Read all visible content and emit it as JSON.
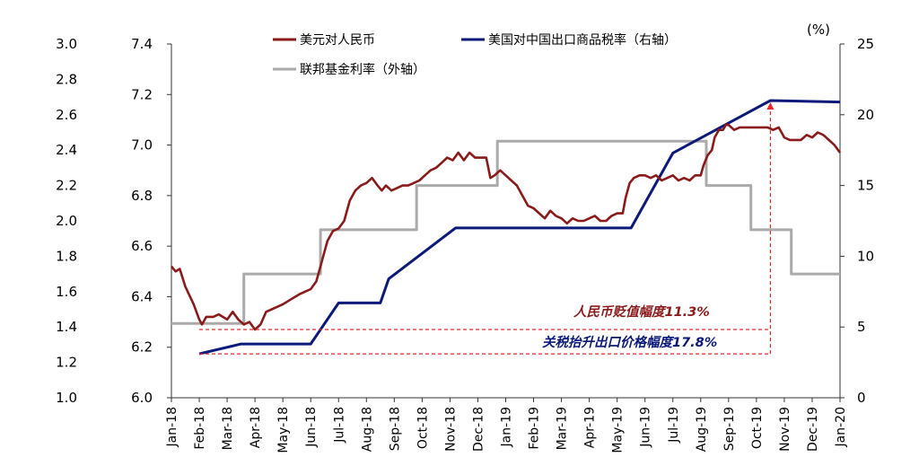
{
  "chart_data": {
    "type": "line",
    "unit_label": "(%)",
    "x_labels": [
      "Jan-18",
      "Feb-18",
      "Mar-18",
      "Apr-18",
      "May-18",
      "Jun-18",
      "Jul-18",
      "Aug-18",
      "Sep-18",
      "Oct-18",
      "Nov-18",
      "Dec-18",
      "Jan-19",
      "Feb-19",
      "Mar-19",
      "Apr-19",
      "May-19",
      "Jun-19",
      "Jul-19",
      "Aug-19",
      "Sep-19",
      "Oct-19",
      "Nov-19",
      "Dec-19",
      "Jan-20"
    ],
    "axes": {
      "outer_left": {
        "min": 1.0,
        "max": 3.0,
        "ticks": [
          "1.0",
          "1.2",
          "1.4",
          "1.6",
          "1.8",
          "2.0",
          "2.2",
          "2.4",
          "2.6",
          "2.8",
          "3.0"
        ]
      },
      "inner_left": {
        "min": 6.0,
        "max": 7.4,
        "ticks": [
          "6.0",
          "6.2",
          "6.4",
          "6.6",
          "6.8",
          "7.0",
          "7.2",
          "7.4"
        ]
      },
      "right": {
        "min": 0,
        "max": 25,
        "ticks": [
          "0",
          "5",
          "10",
          "15",
          "20",
          "25"
        ]
      }
    },
    "series": [
      {
        "name": "美元对人民币",
        "axis": "inner_left",
        "color": "#8b1a1a",
        "points": [
          [
            0,
            6.52
          ],
          [
            0.15,
            6.5
          ],
          [
            0.3,
            6.51
          ],
          [
            0.5,
            6.44
          ],
          [
            0.8,
            6.37
          ],
          [
            1.0,
            6.31
          ],
          [
            1.1,
            6.29
          ],
          [
            1.25,
            6.32
          ],
          [
            1.5,
            6.32
          ],
          [
            1.7,
            6.33
          ],
          [
            2.0,
            6.31
          ],
          [
            2.2,
            6.34
          ],
          [
            2.4,
            6.31
          ],
          [
            2.6,
            6.29
          ],
          [
            2.8,
            6.3
          ],
          [
            3.0,
            6.27
          ],
          [
            3.2,
            6.29
          ],
          [
            3.4,
            6.34
          ],
          [
            3.6,
            6.35
          ],
          [
            3.8,
            6.36
          ],
          [
            4.0,
            6.37
          ],
          [
            4.3,
            6.39
          ],
          [
            4.6,
            6.41
          ],
          [
            4.8,
            6.42
          ],
          [
            5.0,
            6.43
          ],
          [
            5.2,
            6.46
          ],
          [
            5.35,
            6.52
          ],
          [
            5.5,
            6.58
          ],
          [
            5.6,
            6.62
          ],
          [
            5.8,
            6.66
          ],
          [
            6.0,
            6.67
          ],
          [
            6.2,
            6.7
          ],
          [
            6.4,
            6.78
          ],
          [
            6.6,
            6.82
          ],
          [
            6.8,
            6.84
          ],
          [
            7.0,
            6.85
          ],
          [
            7.2,
            6.87
          ],
          [
            7.4,
            6.84
          ],
          [
            7.55,
            6.82
          ],
          [
            7.7,
            6.84
          ],
          [
            7.9,
            6.82
          ],
          [
            8.1,
            6.83
          ],
          [
            8.3,
            6.84
          ],
          [
            8.5,
            6.84
          ],
          [
            8.7,
            6.85
          ],
          [
            8.9,
            6.86
          ],
          [
            9.1,
            6.88
          ],
          [
            9.3,
            6.9
          ],
          [
            9.5,
            6.91
          ],
          [
            9.7,
            6.93
          ],
          [
            9.9,
            6.95
          ],
          [
            10.1,
            6.94
          ],
          [
            10.3,
            6.97
          ],
          [
            10.5,
            6.94
          ],
          [
            10.7,
            6.97
          ],
          [
            10.9,
            6.95
          ],
          [
            11.1,
            6.95
          ],
          [
            11.3,
            6.95
          ],
          [
            11.45,
            6.87
          ],
          [
            11.6,
            6.88
          ],
          [
            11.8,
            6.9
          ],
          [
            12.0,
            6.88
          ],
          [
            12.2,
            6.86
          ],
          [
            12.4,
            6.84
          ],
          [
            12.6,
            6.8
          ],
          [
            12.8,
            6.76
          ],
          [
            13.0,
            6.75
          ],
          [
            13.2,
            6.73
          ],
          [
            13.4,
            6.71
          ],
          [
            13.6,
            6.74
          ],
          [
            13.8,
            6.72
          ],
          [
            14.0,
            6.71
          ],
          [
            14.2,
            6.69
          ],
          [
            14.4,
            6.71
          ],
          [
            14.6,
            6.7
          ],
          [
            14.8,
            6.7
          ],
          [
            15.0,
            6.71
          ],
          [
            15.2,
            6.72
          ],
          [
            15.4,
            6.7
          ],
          [
            15.6,
            6.7
          ],
          [
            15.8,
            6.72
          ],
          [
            16.0,
            6.73
          ],
          [
            16.2,
            6.73
          ],
          [
            16.3,
            6.79
          ],
          [
            16.45,
            6.85
          ],
          [
            16.6,
            6.87
          ],
          [
            16.8,
            6.88
          ],
          [
            17.0,
            6.88
          ],
          [
            17.2,
            6.87
          ],
          [
            17.4,
            6.88
          ],
          [
            17.6,
            6.86
          ],
          [
            17.8,
            6.87
          ],
          [
            18.0,
            6.88
          ],
          [
            18.2,
            6.86
          ],
          [
            18.4,
            6.87
          ],
          [
            18.6,
            6.86
          ],
          [
            18.8,
            6.88
          ],
          [
            19.0,
            6.88
          ],
          [
            19.1,
            6.92
          ],
          [
            19.25,
            6.96
          ],
          [
            19.4,
            6.98
          ],
          [
            19.5,
            7.03
          ],
          [
            19.65,
            7.06
          ],
          [
            19.8,
            7.06
          ],
          [
            19.9,
            7.08
          ],
          [
            20.0,
            7.08
          ],
          [
            20.2,
            7.06
          ],
          [
            20.4,
            7.07
          ],
          [
            20.6,
            7.07
          ],
          [
            20.8,
            7.07
          ],
          [
            21.0,
            7.07
          ],
          [
            21.2,
            7.07
          ],
          [
            21.4,
            7.07
          ],
          [
            21.6,
            7.06
          ],
          [
            21.8,
            7.07
          ],
          [
            22.0,
            7.03
          ],
          [
            22.2,
            7.02
          ],
          [
            22.4,
            7.02
          ],
          [
            22.6,
            7.02
          ],
          [
            22.8,
            7.04
          ],
          [
            23.0,
            7.03
          ],
          [
            23.2,
            7.05
          ],
          [
            23.4,
            7.04
          ],
          [
            23.6,
            7.02
          ],
          [
            23.8,
            7.0
          ],
          [
            24.0,
            6.97
          ]
        ]
      },
      {
        "name": "美国对中国出口商品税率（右轴）",
        "axis": "right",
        "color": "#0b1a7a",
        "points": [
          [
            1.0,
            3.1
          ],
          [
            2.5,
            3.8
          ],
          [
            5.0,
            3.8
          ],
          [
            6.0,
            6.7
          ],
          [
            7.5,
            6.7
          ],
          [
            7.8,
            8.4
          ],
          [
            10.2,
            12.0
          ],
          [
            16.5,
            12.0
          ],
          [
            18.0,
            17.3
          ],
          [
            21.5,
            21.0
          ],
          [
            24.0,
            20.9
          ]
        ]
      },
      {
        "name": "联邦基金利率（外轴）",
        "axis": "outer_left",
        "color": "#aaaaaa",
        "points": [
          [
            0,
            1.42
          ],
          [
            2.6,
            1.42
          ],
          [
            2.6,
            1.7
          ],
          [
            5.35,
            1.7
          ],
          [
            5.35,
            1.95
          ],
          [
            8.8,
            1.95
          ],
          [
            8.8,
            2.2
          ],
          [
            11.7,
            2.2
          ],
          [
            11.7,
            2.45
          ],
          [
            19.2,
            2.45
          ],
          [
            19.2,
            2.2
          ],
          [
            20.8,
            2.2
          ],
          [
            20.8,
            1.95
          ],
          [
            22.25,
            1.95
          ],
          [
            22.25,
            1.7
          ],
          [
            24.0,
            1.7
          ]
        ]
      }
    ],
    "annotations": [
      {
        "text": "人民币贬值幅度11.3%",
        "color": "#8b1a1a"
      },
      {
        "text": "关税抬升出口价格幅度17.8%",
        "color": "#0b1a7a"
      }
    ],
    "legend": {
      "placement": "top"
    },
    "grid": false
  }
}
